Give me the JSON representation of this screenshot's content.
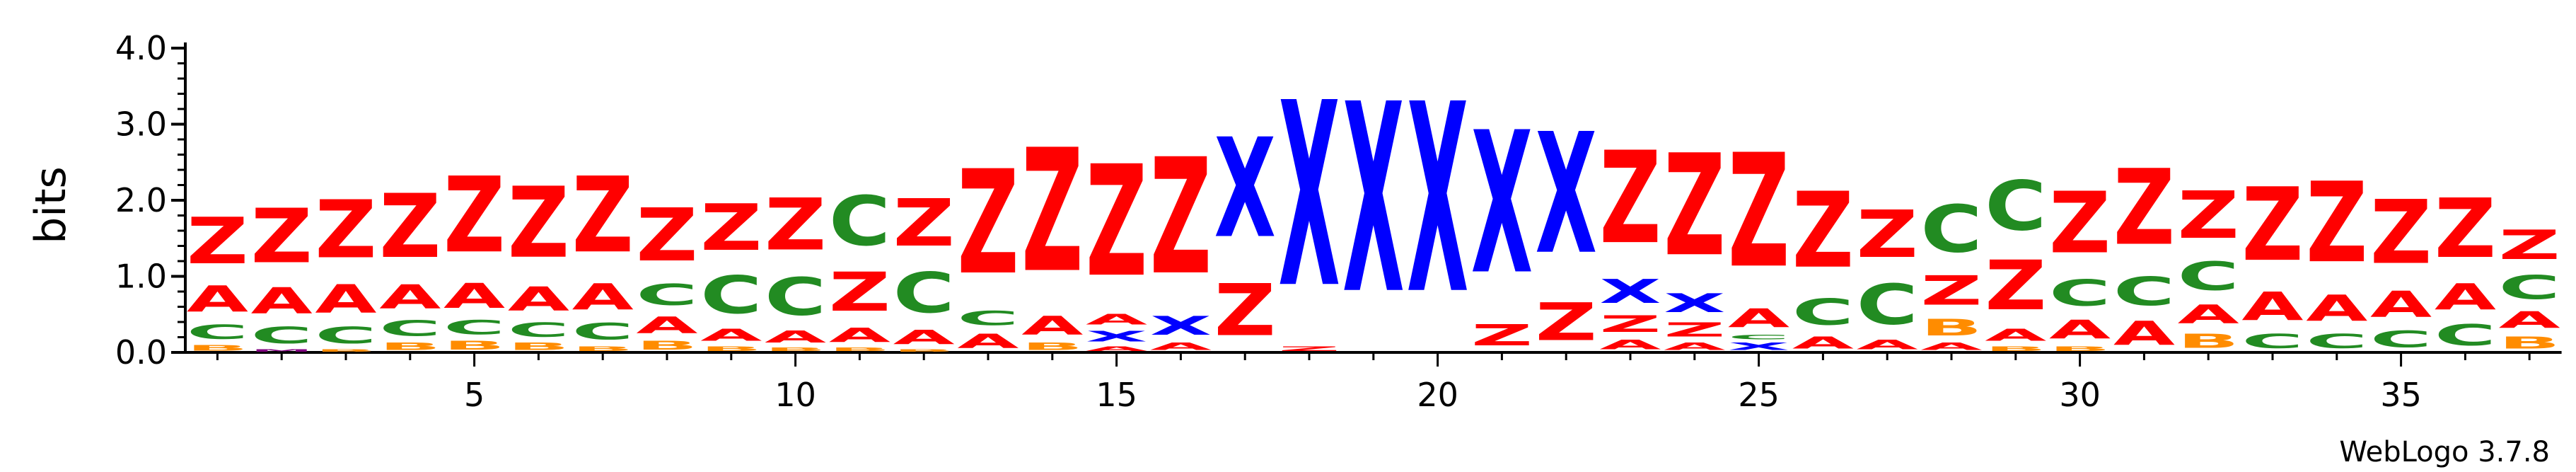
{
  "chart_data": {
    "type": "sequence-logo",
    "ylabel": "bits",
    "ylim": [
      0,
      4.0
    ],
    "y_ticks": [
      "0.0",
      "1.0",
      "2.0",
      "3.0",
      "4.0"
    ],
    "x_range": [
      1,
      37
    ],
    "x_ticks": [
      "5",
      "10",
      "15",
      "20",
      "25",
      "30",
      "35"
    ],
    "credit": "WebLogo 3.7.8",
    "colors": {
      "Z": "#ff0000",
      "X": "#0000ff",
      "A": "#ff0000",
      "C": "#228b22",
      "B": "#ff8c00",
      "M": "#800080",
      "D": "#000000"
    },
    "positions": [
      {
        "pos": 1,
        "stack": [
          [
            "B",
            0.12
          ],
          [
            "C",
            0.3
          ],
          [
            "A",
            0.55
          ],
          [
            "Z",
            0.98
          ]
        ]
      },
      {
        "pos": 2,
        "stack": [
          [
            "M",
            0.05
          ],
          [
            "C",
            0.35
          ],
          [
            "A",
            0.55
          ],
          [
            "Z",
            1.15
          ]
        ]
      },
      {
        "pos": 3,
        "stack": [
          [
            "B",
            0.05
          ],
          [
            "C",
            0.35
          ],
          [
            "A",
            0.6
          ],
          [
            "Z",
            1.22
          ]
        ]
      },
      {
        "pos": 4,
        "stack": [
          [
            "B",
            0.15
          ],
          [
            "C",
            0.33
          ],
          [
            "A",
            0.5
          ],
          [
            "Z",
            1.35
          ]
        ]
      },
      {
        "pos": 5,
        "stack": [
          [
            "B",
            0.18
          ],
          [
            "C",
            0.3
          ],
          [
            "A",
            0.52
          ],
          [
            "Z",
            1.6
          ]
        ]
      },
      {
        "pos": 6,
        "stack": [
          [
            "B",
            0.15
          ],
          [
            "C",
            0.3
          ],
          [
            "A",
            0.5
          ],
          [
            "Z",
            1.5
          ]
        ]
      },
      {
        "pos": 7,
        "stack": [
          [
            "B",
            0.1
          ],
          [
            "C",
            0.35
          ],
          [
            "A",
            0.55
          ],
          [
            "Z",
            1.6
          ]
        ]
      },
      {
        "pos": 8,
        "stack": [
          [
            "B",
            0.18
          ],
          [
            "A",
            0.35
          ],
          [
            "C",
            0.45
          ],
          [
            "Z",
            1.12
          ]
        ]
      },
      {
        "pos": 9,
        "stack": [
          [
            "B",
            0.1
          ],
          [
            "A",
            0.25
          ],
          [
            "C",
            0.8
          ],
          [
            "Z",
            0.98
          ]
        ]
      },
      {
        "pos": 10,
        "stack": [
          [
            "B",
            0.08
          ],
          [
            "A",
            0.25
          ],
          [
            "C",
            0.8
          ],
          [
            "Z",
            1.1
          ]
        ]
      },
      {
        "pos": 11,
        "stack": [
          [
            "B",
            0.08
          ],
          [
            "A",
            0.3
          ],
          [
            "Z",
            0.82
          ],
          [
            "C",
            1.05
          ]
        ]
      },
      {
        "pos": 12,
        "stack": [
          [
            "B",
            0.05
          ],
          [
            "A",
            0.3
          ],
          [
            "C",
            0.85
          ],
          [
            "Z",
            1.0
          ]
        ]
      },
      {
        "pos": 13,
        "stack": [
          [
            "A",
            0.3
          ],
          [
            "C",
            0.3
          ],
          [
            "Z",
            2.2
          ]
        ]
      },
      {
        "pos": 14,
        "stack": [
          [
            "B",
            0.15
          ],
          [
            "A",
            0.4
          ],
          [
            "Z",
            2.6
          ]
        ]
      },
      {
        "pos": 15,
        "stack": [
          [
            "A",
            0.1
          ],
          [
            "X",
            0.22
          ],
          [
            "A",
            0.22
          ],
          [
            "Z",
            2.35
          ]
        ]
      },
      {
        "pos": 16,
        "stack": [
          [
            "A",
            0.15
          ],
          [
            "X",
            0.4
          ],
          [
            "Z",
            2.45
          ]
        ]
      },
      {
        "pos": 17,
        "stack": [
          [
            "Z",
            1.1
          ],
          [
            "X",
            2.1
          ]
        ]
      },
      {
        "pos": 18,
        "stack": [
          [
            "Z",
            0.1
          ],
          [
            "X",
            3.9
          ]
        ]
      },
      {
        "pos": 19,
        "stack": [
          [
            "X",
            4.0
          ]
        ]
      },
      {
        "pos": 20,
        "stack": [
          [
            "X",
            4.0
          ]
        ]
      },
      {
        "pos": 21,
        "stack": [
          [
            "Z",
            0.45
          ],
          [
            "X",
            3.0
          ]
        ]
      },
      {
        "pos": 22,
        "stack": [
          [
            "Z",
            0.8
          ],
          [
            "X",
            2.55
          ]
        ]
      },
      {
        "pos": 23,
        "stack": [
          [
            "A",
            0.2
          ],
          [
            "Z",
            0.35
          ],
          [
            "X",
            0.5
          ],
          [
            "Z",
            1.95
          ]
        ]
      },
      {
        "pos": 24,
        "stack": [
          [
            "A",
            0.15
          ],
          [
            "Z",
            0.3
          ],
          [
            "X",
            0.4
          ],
          [
            "Z",
            2.15
          ]
        ]
      },
      {
        "pos": 25,
        "stack": [
          [
            "X",
            0.15
          ],
          [
            "C",
            0.1
          ],
          [
            "A",
            0.4
          ],
          [
            "Z",
            2.4
          ]
        ]
      },
      {
        "pos": 26,
        "stack": [
          [
            "A",
            0.25
          ],
          [
            "C",
            0.55
          ],
          [
            "Z",
            1.6
          ]
        ]
      },
      {
        "pos": 27,
        "stack": [
          [
            "A",
            0.2
          ],
          [
            "C",
            0.85
          ],
          [
            "Z",
            1.0
          ]
        ]
      },
      {
        "pos": 28,
        "stack": [
          [
            "A",
            0.15
          ],
          [
            "B",
            0.35
          ],
          [
            "Z",
            0.62
          ],
          [
            "C",
            1.0
          ]
        ]
      },
      {
        "pos": 29,
        "stack": [
          [
            "B",
            0.1
          ],
          [
            "A",
            0.25
          ],
          [
            "Z",
            1.05
          ],
          [
            "C",
            1.05
          ]
        ]
      },
      {
        "pos": 30,
        "stack": [
          [
            "B",
            0.1
          ],
          [
            "A",
            0.4
          ],
          [
            "C",
            0.55
          ],
          [
            "Z",
            1.3
          ]
        ]
      },
      {
        "pos": 31,
        "stack": [
          [
            "A",
            0.5
          ],
          [
            "C",
            0.6
          ],
          [
            "Z",
            1.6
          ]
        ]
      },
      {
        "pos": 32,
        "stack": [
          [
            "B",
            0.3
          ],
          [
            "A",
            0.4
          ],
          [
            "C",
            0.6
          ],
          [
            "Z",
            1.0
          ]
        ]
      },
      {
        "pos": 33,
        "stack": [
          [
            "C",
            0.3
          ],
          [
            "A",
            0.6
          ],
          [
            "Z",
            1.55
          ]
        ]
      },
      {
        "pos": 34,
        "stack": [
          [
            "C",
            0.3
          ],
          [
            "A",
            0.55
          ],
          [
            "Z",
            1.7
          ]
        ]
      },
      {
        "pos": 35,
        "stack": [
          [
            "C",
            0.35
          ],
          [
            "A",
            0.55
          ],
          [
            "Z",
            1.35
          ]
        ]
      },
      {
        "pos": 36,
        "stack": [
          [
            "C",
            0.45
          ],
          [
            "A",
            0.55
          ],
          [
            "Z",
            1.25
          ]
        ]
      },
      {
        "pos": 37,
        "stack": [
          [
            "B",
            0.25
          ],
          [
            "A",
            0.35
          ],
          [
            "C",
            0.5
          ],
          [
            "Z",
            0.62
          ]
        ]
      }
    ]
  }
}
